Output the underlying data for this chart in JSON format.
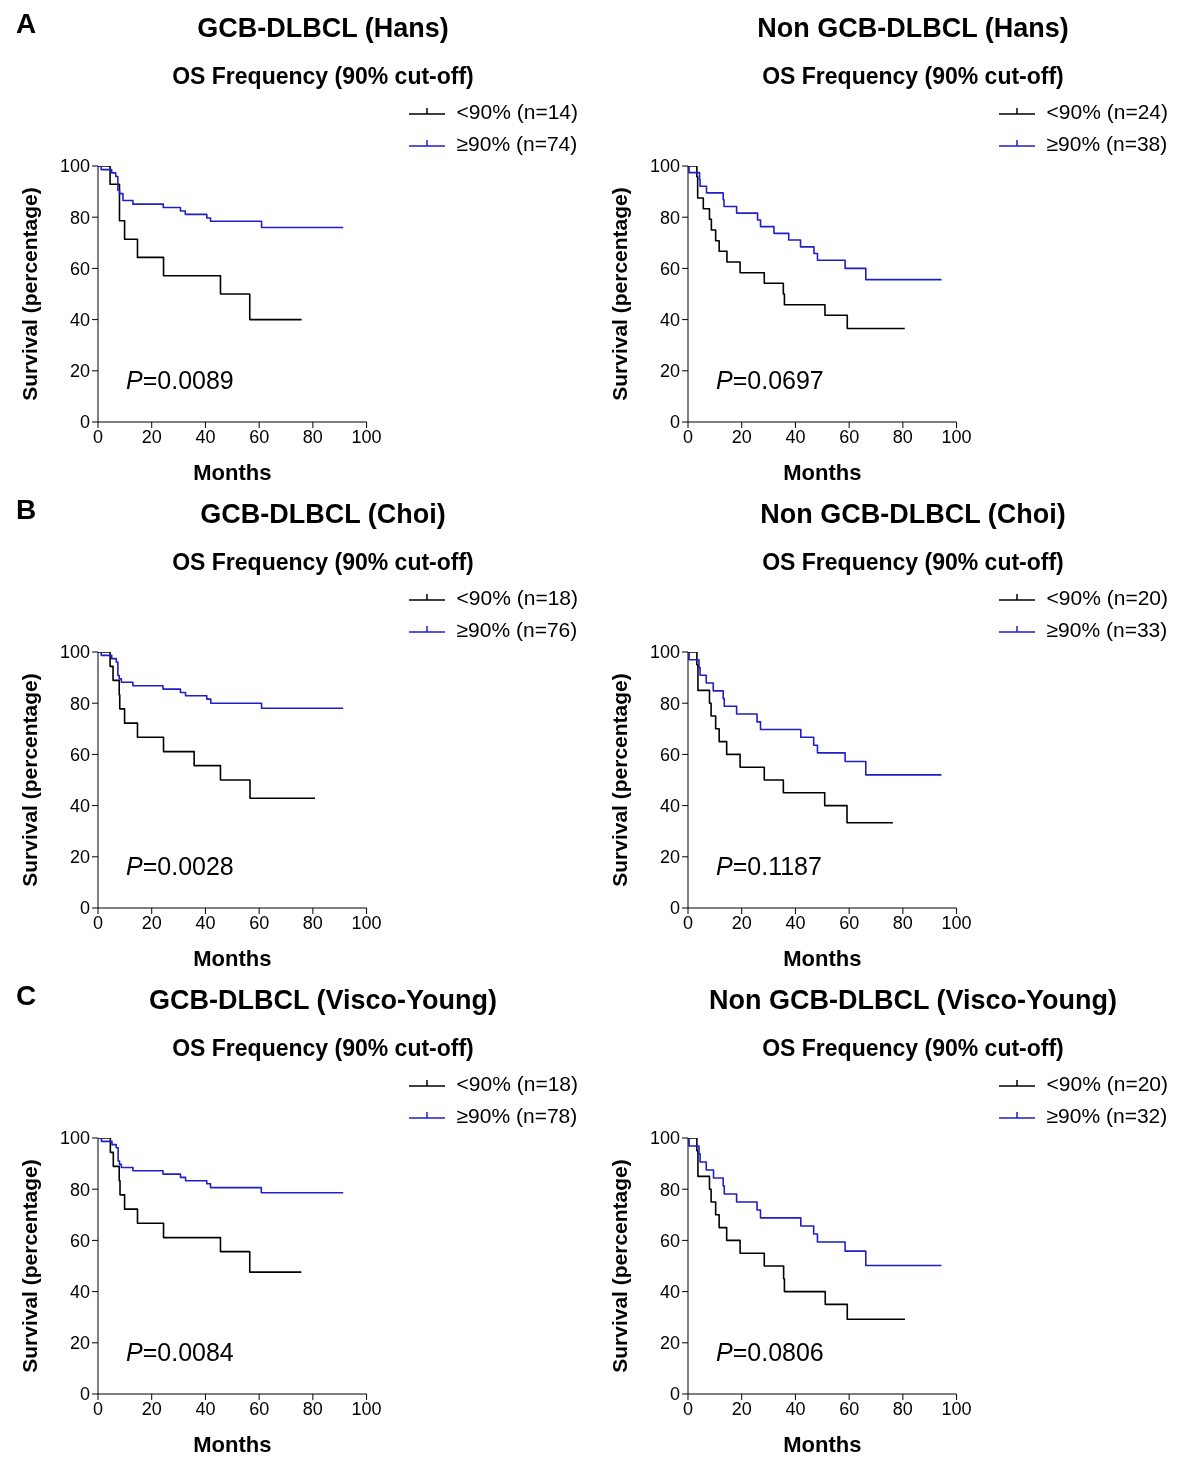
{
  "chart_data": [
    {
      "type": "step",
      "title": "GCB-DLBCL (Hans)",
      "subtitle": "OS Frequency (90% cut-off)",
      "xlabel": "Months",
      "ylabel": "Survival (percentage)",
      "annotations": [
        "A",
        "P=0.0089"
      ],
      "xlim": [
        0,
        100
      ],
      "xticks": [
        0,
        20,
        40,
        60,
        80,
        100
      ],
      "ylim": [
        0,
        100
      ],
      "yticks": [
        0,
        20,
        40,
        60,
        80,
        100
      ],
      "legend": "top right",
      "line_style": "solid",
      "series": [
        {
          "name": "<90% (n=14)",
          "color": "#000000",
          "x": [
            0,
            4.5,
            8.0,
            9.9,
            14.7,
            24.4,
            45.6,
            56.5,
            75.8
          ],
          "values": [
            100,
            92.9,
            78.6,
            71.4,
            64.3,
            57.1,
            50,
            40,
            40
          ]
        },
        {
          "name": "≥90% (n=74)",
          "color": "#1f1fc8",
          "x": [
            0,
            1.2,
            5.1,
            6.6,
            7.4,
            8.0,
            9.3,
            13.0,
            24.3,
            30.7,
            32.5,
            40.5,
            41.9,
            60.9,
            91.3
          ],
          "values": [
            100,
            98.6,
            97.3,
            95.9,
            90.5,
            89.2,
            86.5,
            85.1,
            83.8,
            82.4,
            81.1,
            79.7,
            78.4,
            76.0,
            76.0
          ]
        }
      ]
    },
    {
      "type": "step",
      "title": "Non GCB-DLBCL (Hans)",
      "subtitle": "OS Frequency (90% cut-off)",
      "xlabel": "Months",
      "ylabel": "Survival (percentage)",
      "annotations": [
        "P=0.0697"
      ],
      "xlim": [
        0,
        100
      ],
      "xticks": [
        0,
        20,
        40,
        60,
        80,
        100
      ],
      "ylim": [
        0,
        100
      ],
      "yticks": [
        0,
        20,
        40,
        60,
        80,
        100
      ],
      "legend": "top right",
      "line_style": "solid",
      "series": [
        {
          "name": "<90% (n=24)",
          "color": "#000000",
          "x": [
            0,
            3.3,
            3.6,
            5.7,
            8.0,
            8.7,
            10.3,
            11.6,
            14.5,
            19.4,
            28.4,
            35.5,
            35.9,
            51.0,
            59.3,
            80.7
          ],
          "values": [
            100,
            95.8,
            87.5,
            83.3,
            79.2,
            75,
            70.8,
            66.7,
            62.5,
            58.3,
            54.2,
            50,
            45.8,
            41.7,
            36.5,
            36.5
          ]
        },
        {
          "name": "≥90% (n=38)",
          "color": "#1f1fc8",
          "x": [
            0,
            0.4,
            4.3,
            4.5,
            6.9,
            13.1,
            13.4,
            18.1,
            25.9,
            27.0,
            32.0,
            37.5,
            41.9,
            46.9,
            48.2,
            58.5,
            66.2,
            94.4
          ],
          "values": [
            100,
            97.4,
            94.7,
            92.1,
            89.5,
            86.8,
            84.2,
            81.6,
            78.9,
            76.3,
            73.7,
            71.1,
            68.4,
            65.8,
            63.2,
            60.0,
            55.6,
            55.6
          ]
        }
      ]
    },
    {
      "type": "step",
      "title": "GCB-DLBCL (Choi)",
      "subtitle": "OS Frequency (90% cut-off)",
      "xlabel": "Months",
      "ylabel": "Survival (percentage)",
      "annotations": [
        "B",
        "P=0.0028"
      ],
      "xlim": [
        0,
        100
      ],
      "xticks": [
        0,
        20,
        40,
        60,
        80,
        100
      ],
      "ylim": [
        0,
        100
      ],
      "yticks": [
        0,
        20,
        40,
        60,
        80,
        100
      ],
      "legend": "top right",
      "line_style": "solid",
      "series": [
        {
          "name": "<90% (n=18)",
          "color": "#000000",
          "x": [
            0,
            4.5,
            5.6,
            7.9,
            8.1,
            9.9,
            14.7,
            24.4,
            35.8,
            45.6,
            56.6,
            80.8
          ],
          "values": [
            100,
            94.4,
            88.9,
            83.3,
            77.8,
            72.2,
            66.7,
            61.1,
            55.6,
            50,
            42.9,
            42.9
          ]
        },
        {
          "name": "≥90% (n=76)",
          "color": "#1f1fc8",
          "x": [
            0,
            1.2,
            5.1,
            6.8,
            7.4,
            7.9,
            8.7,
            13.0,
            24.2,
            30.7,
            32.6,
            40.5,
            42.0,
            60.9,
            91.3
          ],
          "values": [
            100,
            98.7,
            97.4,
            96.1,
            90.8,
            89.5,
            88.2,
            86.8,
            85.5,
            84.2,
            82.9,
            81.6,
            80.0,
            78.0,
            78.0
          ]
        }
      ]
    },
    {
      "type": "step",
      "title": "Non GCB-DLBCL (Choi)",
      "subtitle": "OS Frequency (90% cut-off)",
      "xlabel": "Months",
      "ylabel": "Survival (percentage)",
      "annotations": [
        "P=0.1187"
      ],
      "xlim": [
        0,
        100
      ],
      "xticks": [
        0,
        20,
        40,
        60,
        80,
        100
      ],
      "ylim": [
        0,
        100
      ],
      "yticks": [
        0,
        20,
        40,
        60,
        80,
        100
      ],
      "legend": "top right",
      "line_style": "solid",
      "series": [
        {
          "name": "<90% (n=20)",
          "color": "#000000",
          "x": [
            0,
            3.3,
            3.7,
            8.0,
            8.6,
            10.3,
            11.6,
            14.4,
            19.4,
            28.4,
            35.5,
            50.9,
            59.2,
            76.3
          ],
          "values": [
            100,
            95,
            85,
            80,
            75,
            70,
            65,
            60,
            55,
            50,
            45,
            40,
            33.3,
            33.3
          ]
        },
        {
          "name": "≥90% (n=33)",
          "color": "#1f1fc8",
          "x": [
            0,
            0.4,
            4.1,
            4.5,
            6.8,
            9.4,
            13.1,
            13.5,
            18.1,
            25.7,
            27.0,
            42.0,
            46.8,
            48.2,
            58.5,
            66.2,
            94.4
          ],
          "values": [
            100,
            97.0,
            93.9,
            90.9,
            87.9,
            84.8,
            81.8,
            78.8,
            75.8,
            72.7,
            69.7,
            66.7,
            63.6,
            60.6,
            57.2,
            52.0,
            52.0
          ]
        }
      ]
    },
    {
      "type": "step",
      "title": "GCB-DLBCL (Visco-Young)",
      "subtitle": "OS Frequency (90% cut-off)",
      "xlabel": "Months",
      "ylabel": "Survival (percentage)",
      "annotations": [
        "C",
        "P=0.0084"
      ],
      "xlim": [
        0,
        100
      ],
      "xticks": [
        0,
        20,
        40,
        60,
        80,
        100
      ],
      "ylim": [
        0,
        100
      ],
      "yticks": [
        0,
        20,
        40,
        60,
        80,
        100
      ],
      "legend": "top right",
      "line_style": "solid",
      "series": [
        {
          "name": "<90% (n=18)",
          "color": "#000000",
          "x": [
            0,
            4.6,
            5.7,
            7.9,
            8.2,
            9.9,
            14.7,
            24.4,
            45.6,
            56.5,
            75.7
          ],
          "values": [
            100,
            94.4,
            88.9,
            83.3,
            77.8,
            72.2,
            66.7,
            61.1,
            55.6,
            47.6,
            47.6
          ]
        },
        {
          "name": "≥90% (n=78)",
          "color": "#1f1fc8",
          "x": [
            0,
            1.3,
            5.2,
            6.8,
            7.5,
            8.0,
            8.7,
            13.0,
            24.2,
            30.7,
            32.6,
            40.5,
            41.9,
            60.8,
            91.3
          ],
          "values": [
            100,
            98.7,
            97.4,
            96.2,
            91.0,
            89.7,
            88.5,
            87.2,
            85.9,
            84.6,
            83.3,
            82.1,
            80.6,
            78.6,
            78.6
          ]
        }
      ]
    },
    {
      "type": "step",
      "title": "Non GCB-DLBCL (Visco-Young)",
      "subtitle": "OS Frequency (90% cut-off)",
      "xlabel": "Months",
      "ylabel": "Survival (percentage)",
      "annotations": [
        "P=0.0806"
      ],
      "xlim": [
        0,
        100
      ],
      "xticks": [
        0,
        20,
        40,
        60,
        80,
        100
      ],
      "ylim": [
        0,
        100
      ],
      "yticks": [
        0,
        20,
        40,
        60,
        80,
        100
      ],
      "legend": "top right",
      "line_style": "solid",
      "series": [
        {
          "name": "<90% (n=20)",
          "color": "#000000",
          "x": [
            0,
            3.3,
            3.7,
            8.0,
            8.6,
            10.3,
            11.6,
            14.4,
            19.4,
            28.4,
            35.6,
            35.9,
            51.1,
            59.3,
            80.8
          ],
          "values": [
            100,
            95,
            85,
            80,
            75,
            70,
            65,
            60,
            55,
            50,
            45,
            40,
            35,
            29.2,
            29.2
          ]
        },
        {
          "name": "≥90% (n=32)",
          "color": "#1f1fc8",
          "x": [
            0,
            0.4,
            4.1,
            4.5,
            6.8,
            9.5,
            13.1,
            13.5,
            18.1,
            25.7,
            27.0,
            42.0,
            46.8,
            48.2,
            58.5,
            66.2,
            94.4
          ],
          "values": [
            100,
            96.9,
            93.8,
            90.6,
            87.5,
            84.4,
            81.3,
            78.1,
            75,
            71.9,
            68.8,
            65.6,
            62.5,
            59.4,
            55.8,
            50.2,
            50.2
          ]
        }
      ]
    }
  ]
}
